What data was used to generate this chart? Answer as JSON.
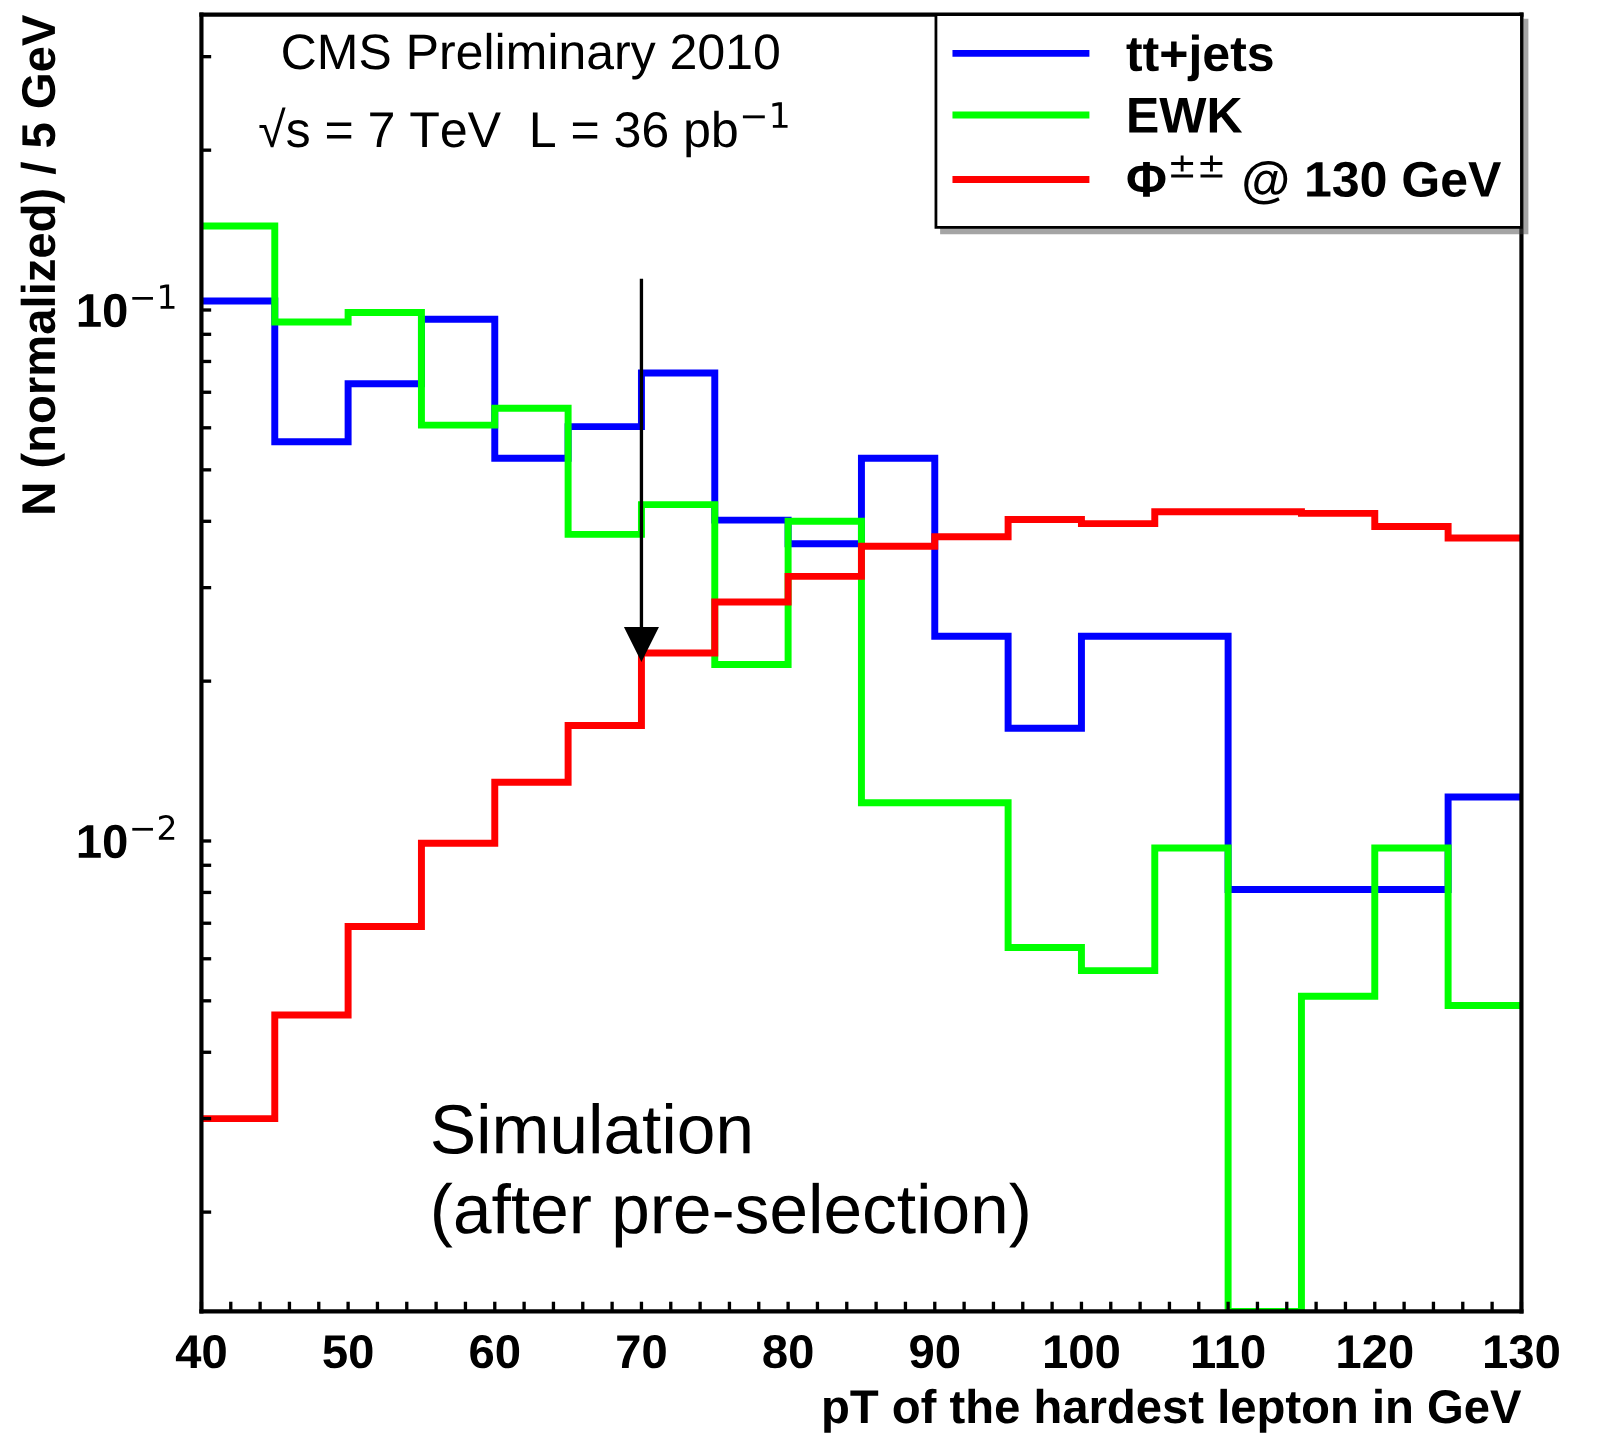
{
  "chart_data": {
    "type": "histogram",
    "title": "CMS Preliminary 2010",
    "subtitle": "√s = 7 TeV  L = 36 pb$^{−1}$",
    "xlabel": "pT of the hardest lepton in GeV",
    "ylabel": "N (normalized) / 5 GeV",
    "annotations": [
      "Simulation\n(after pre-selection)"
    ],
    "bins": [
      40,
      45,
      50,
      55,
      60,
      65,
      70,
      75,
      80,
      85,
      90,
      95,
      100,
      105,
      110,
      115,
      120,
      125,
      130
    ],
    "series": [
      {
        "name": "tt+jets",
        "color": "#0000ff",
        "values": [
          0.104,
          0.0565,
          0.0726,
          0.0961,
          0.0526,
          0.0603,
          0.0761,
          0.0402,
          0.0363,
          0.0526,
          0.0243,
          0.0163,
          0.0243,
          0.0243,
          0.0081,
          0.0081,
          0.0081,
          0.0121
        ]
      },
      {
        "name": "EWK",
        "color": "#00ff00",
        "values": [
          0.144,
          0.0949,
          0.0989,
          0.0607,
          0.0653,
          0.0378,
          0.043,
          0.0215,
          0.04,
          0.0118,
          0.0118,
          0.0063,
          0.0057,
          0.0097,
          0.0013,
          0.0051,
          0.0097,
          0.0049
        ]
      },
      {
        "name": "Φ$^{±±}$ @ 130 GeV",
        "color": "#ff0000",
        "values": [
          0.003,
          0.0047,
          0.0069,
          0.0099,
          0.0129,
          0.0165,
          0.0226,
          0.0282,
          0.0315,
          0.0359,
          0.0374,
          0.0403,
          0.0396,
          0.0417,
          0.0417,
          0.0414,
          0.0391,
          0.0372
        ]
      }
    ],
    "ref_lines": [
      {
        "axis": "x",
        "value": 70
      }
    ],
    "log": "y",
    "xlim": [
      40,
      130
    ],
    "ylim": [
      0.0013,
      0.36
    ],
    "xticks": [
      40,
      {
        "value": 42,
        "label": null
      },
      {
        "value": 44,
        "label": null
      },
      {
        "value": 46,
        "label": null
      },
      {
        "value": 48,
        "label": null
      },
      50,
      {
        "value": 52,
        "label": null
      },
      {
        "value": 54,
        "label": null
      },
      {
        "value": 56,
        "label": null
      },
      {
        "value": 58,
        "label": null
      },
      60,
      {
        "value": 62,
        "label": null
      },
      {
        "value": 64,
        "label": null
      },
      {
        "value": 66,
        "label": null
      },
      {
        "value": 68,
        "label": null
      },
      70,
      {
        "value": 72,
        "label": null
      },
      {
        "value": 74,
        "label": null
      },
      {
        "value": 76,
        "label": null
      },
      {
        "value": 78,
        "label": null
      },
      80,
      {
        "value": 82,
        "label": null
      },
      {
        "value": 84,
        "label": null
      },
      {
        "value": 86,
        "label": null
      },
      {
        "value": 88,
        "label": null
      },
      90,
      {
        "value": 92,
        "label": null
      },
      {
        "value": 94,
        "label": null
      },
      {
        "value": 96,
        "label": null
      },
      {
        "value": 98,
        "label": null
      },
      100,
      {
        "value": 102,
        "label": null
      },
      {
        "value": 104,
        "label": null
      },
      {
        "value": 106,
        "label": null
      },
      {
        "value": 108,
        "label": null
      },
      110,
      {
        "value": 112,
        "label": null
      },
      {
        "value": 114,
        "label": null
      },
      {
        "value": 116,
        "label": null
      },
      {
        "value": 118,
        "label": null
      },
      120,
      {
        "value": 122,
        "label": null
      },
      {
        "value": 124,
        "label": null
      },
      {
        "value": 126,
        "label": null
      },
      {
        "value": 128,
        "label": null
      },
      130
    ],
    "yticks": [
      {
        "value": 0.002,
        "label": null
      },
      {
        "value": 0.003,
        "label": null
      },
      {
        "value": 0.004,
        "label": null
      },
      {
        "value": 0.005,
        "label": null
      },
      {
        "value": 0.006,
        "label": null
      },
      {
        "value": 0.007,
        "label": null
      },
      {
        "value": 0.008,
        "label": null
      },
      {
        "value": 0.009,
        "label": null
      },
      {
        "value": 0.01,
        "label": "10$^{−2}$"
      },
      {
        "value": 0.02,
        "label": null
      },
      {
        "value": 0.03,
        "label": null
      },
      {
        "value": 0.04,
        "label": null
      },
      {
        "value": 0.05,
        "label": null
      },
      {
        "value": 0.06,
        "label": null
      },
      {
        "value": 0.07,
        "label": null
      },
      {
        "value": 0.08,
        "label": null
      },
      {
        "value": 0.09,
        "label": null
      },
      {
        "value": 0.1,
        "label": "10$^{−1}$"
      },
      {
        "value": 0.2,
        "label": null
      },
      {
        "value": 0.3,
        "label": null
      }
    ],
    "grid": false,
    "legend": "top right"
  }
}
